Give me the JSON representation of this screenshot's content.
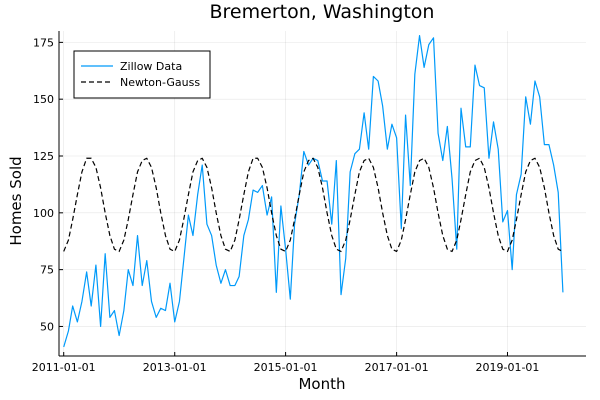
{
  "chart_data": {
    "type": "line",
    "title": "Bremerton, Washington",
    "xlabel": "Month",
    "ylabel": "Homes Sold",
    "x_axis": {
      "type": "date",
      "range": [
        "2010-12-01",
        "2020-06-01"
      ],
      "ticks": [
        "2011-01-01",
        "2013-01-01",
        "2015-01-01",
        "2017-01-01",
        "2019-01-01"
      ]
    },
    "y_axis": {
      "range": [
        37,
        180
      ],
      "ticks": [
        50,
        75,
        100,
        125,
        150,
        175
      ]
    },
    "grid": true,
    "legend": {
      "position": "top-left",
      "border": true
    },
    "series": [
      {
        "name": "Zillow Data",
        "color": "#009AFA",
        "style": "solid",
        "points": [
          [
            "2011-01-01",
            41
          ],
          [
            "2011-02-01",
            48
          ],
          [
            "2011-03-01",
            59
          ],
          [
            "2011-04-01",
            52
          ],
          [
            "2011-05-01",
            61
          ],
          [
            "2011-06-01",
            74
          ],
          [
            "2011-07-01",
            59
          ],
          [
            "2011-08-01",
            77
          ],
          [
            "2011-09-01",
            50
          ],
          [
            "2011-10-01",
            82
          ],
          [
            "2011-11-01",
            54
          ],
          [
            "2011-12-01",
            57
          ],
          [
            "2012-01-01",
            46
          ],
          [
            "2012-02-01",
            57
          ],
          [
            "2012-03-01",
            75
          ],
          [
            "2012-04-01",
            68
          ],
          [
            "2012-05-01",
            90
          ],
          [
            "2012-06-01",
            68
          ],
          [
            "2012-07-01",
            79
          ],
          [
            "2012-08-01",
            61
          ],
          [
            "2012-09-01",
            54
          ],
          [
            "2012-10-01",
            58
          ],
          [
            "2012-11-01",
            57
          ],
          [
            "2012-12-01",
            69
          ],
          [
            "2013-01-01",
            52
          ],
          [
            "2013-02-01",
            61
          ],
          [
            "2013-03-01",
            79
          ],
          [
            "2013-04-01",
            99
          ],
          [
            "2013-05-01",
            90
          ],
          [
            "2013-06-01",
            108
          ],
          [
            "2013-07-01",
            121
          ],
          [
            "2013-08-01",
            95
          ],
          [
            "2013-09-01",
            90
          ],
          [
            "2013-10-01",
            77
          ],
          [
            "2013-11-01",
            69
          ],
          [
            "2013-12-01",
            75
          ],
          [
            "2014-01-01",
            68
          ],
          [
            "2014-02-01",
            68
          ],
          [
            "2014-03-01",
            72
          ],
          [
            "2014-04-01",
            90
          ],
          [
            "2014-05-01",
            97
          ],
          [
            "2014-06-01",
            110
          ],
          [
            "2014-07-01",
            109
          ],
          [
            "2014-08-01",
            112
          ],
          [
            "2014-09-01",
            99
          ],
          [
            "2014-10-01",
            107
          ],
          [
            "2014-11-01",
            65
          ],
          [
            "2014-12-01",
            103
          ],
          [
            "2015-01-01",
            84
          ],
          [
            "2015-02-01",
            62
          ],
          [
            "2015-03-01",
            95
          ],
          [
            "2015-04-01",
            108
          ],
          [
            "2015-05-01",
            127
          ],
          [
            "2015-06-01",
            121
          ],
          [
            "2015-07-01",
            124
          ],
          [
            "2015-08-01",
            123
          ],
          [
            "2015-09-01",
            114
          ],
          [
            "2015-10-01",
            114
          ],
          [
            "2015-11-01",
            95
          ],
          [
            "2015-12-01",
            123
          ],
          [
            "2016-01-01",
            64
          ],
          [
            "2016-02-01",
            80
          ],
          [
            "2016-03-01",
            118
          ],
          [
            "2016-04-01",
            126
          ],
          [
            "2016-05-01",
            128
          ],
          [
            "2016-06-01",
            144
          ],
          [
            "2016-07-01",
            128
          ],
          [
            "2016-08-01",
            160
          ],
          [
            "2016-09-01",
            158
          ],
          [
            "2016-10-01",
            147
          ],
          [
            "2016-11-01",
            128
          ],
          [
            "2016-12-01",
            139
          ],
          [
            "2017-01-01",
            133
          ],
          [
            "2017-02-01",
            93
          ],
          [
            "2017-03-01",
            143
          ],
          [
            "2017-04-01",
            112
          ],
          [
            "2017-05-01",
            161
          ],
          [
            "2017-06-01",
            178
          ],
          [
            "2017-07-01",
            164
          ],
          [
            "2017-08-01",
            174
          ],
          [
            "2017-09-01",
            177
          ],
          [
            "2017-10-01",
            135
          ],
          [
            "2017-11-01",
            123
          ],
          [
            "2017-12-01",
            138
          ],
          [
            "2018-01-01",
            115
          ],
          [
            "2018-02-01",
            84
          ],
          [
            "2018-03-01",
            146
          ],
          [
            "2018-04-01",
            129
          ],
          [
            "2018-05-01",
            129
          ],
          [
            "2018-06-01",
            165
          ],
          [
            "2018-07-01",
            156
          ],
          [
            "2018-08-01",
            155
          ],
          [
            "2018-09-01",
            124
          ],
          [
            "2018-10-01",
            140
          ],
          [
            "2018-11-01",
            128
          ],
          [
            "2018-12-01",
            96
          ],
          [
            "2019-01-01",
            101
          ],
          [
            "2019-02-01",
            75
          ],
          [
            "2019-03-01",
            108
          ],
          [
            "2019-04-01",
            117
          ],
          [
            "2019-05-01",
            151
          ],
          [
            "2019-06-01",
            139
          ],
          [
            "2019-07-01",
            158
          ],
          [
            "2019-08-01",
            151
          ],
          [
            "2019-09-01",
            130
          ],
          [
            "2019-10-01",
            130
          ],
          [
            "2019-11-01",
            121
          ],
          [
            "2019-12-01",
            109
          ],
          [
            "2020-01-01",
            65
          ]
        ]
      },
      {
        "name": "Newton-Gauss",
        "color": "#000000",
        "style": "dashed",
        "points": [
          [
            "2011-01-01",
            83
          ],
          [
            "2011-02-01",
            88
          ],
          [
            "2011-03-01",
            97
          ],
          [
            "2011-04-01",
            108
          ],
          [
            "2011-05-01",
            118
          ],
          [
            "2011-06-01",
            124
          ],
          [
            "2011-07-01",
            124
          ],
          [
            "2011-08-01",
            120
          ],
          [
            "2011-09-01",
            111
          ],
          [
            "2011-10-01",
            100
          ],
          [
            "2011-11-01",
            90
          ],
          [
            "2011-12-01",
            84
          ],
          [
            "2012-01-01",
            83
          ],
          [
            "2012-02-01",
            88
          ],
          [
            "2012-03-01",
            97
          ],
          [
            "2012-04-01",
            108
          ],
          [
            "2012-05-01",
            118
          ],
          [
            "2012-06-01",
            123
          ],
          [
            "2012-07-01",
            124
          ],
          [
            "2012-08-01",
            120
          ],
          [
            "2012-09-01",
            111
          ],
          [
            "2012-10-01",
            100
          ],
          [
            "2012-11-01",
            90
          ],
          [
            "2012-12-01",
            84
          ],
          [
            "2013-01-01",
            83
          ],
          [
            "2013-02-01",
            88
          ],
          [
            "2013-03-01",
            97
          ],
          [
            "2013-04-01",
            108
          ],
          [
            "2013-05-01",
            118
          ],
          [
            "2013-06-01",
            123
          ],
          [
            "2013-07-01",
            124
          ],
          [
            "2013-08-01",
            120
          ],
          [
            "2013-09-01",
            111
          ],
          [
            "2013-10-01",
            100
          ],
          [
            "2013-11-01",
            90
          ],
          [
            "2013-12-01",
            84
          ],
          [
            "2014-01-01",
            83
          ],
          [
            "2014-02-01",
            88
          ],
          [
            "2014-03-01",
            97
          ],
          [
            "2014-04-01",
            108
          ],
          [
            "2014-05-01",
            118
          ],
          [
            "2014-06-01",
            124
          ],
          [
            "2014-07-01",
            124
          ],
          [
            "2014-08-01",
            120
          ],
          [
            "2014-09-01",
            111
          ],
          [
            "2014-10-01",
            100
          ],
          [
            "2014-11-01",
            90
          ],
          [
            "2014-12-01",
            84
          ],
          [
            "2015-01-01",
            83
          ],
          [
            "2015-02-01",
            88
          ],
          [
            "2015-03-01",
            97
          ],
          [
            "2015-04-01",
            108
          ],
          [
            "2015-05-01",
            118
          ],
          [
            "2015-06-01",
            123
          ],
          [
            "2015-07-01",
            124
          ],
          [
            "2015-08-01",
            120
          ],
          [
            "2015-09-01",
            111
          ],
          [
            "2015-10-01",
            100
          ],
          [
            "2015-11-01",
            90
          ],
          [
            "2015-12-01",
            84
          ],
          [
            "2016-01-01",
            83
          ],
          [
            "2016-02-01",
            88
          ],
          [
            "2016-03-01",
            97
          ],
          [
            "2016-04-01",
            108
          ],
          [
            "2016-05-01",
            118
          ],
          [
            "2016-06-01",
            123
          ],
          [
            "2016-07-01",
            124
          ],
          [
            "2016-08-01",
            120
          ],
          [
            "2016-09-01",
            111
          ],
          [
            "2016-10-01",
            100
          ],
          [
            "2016-11-01",
            90
          ],
          [
            "2016-12-01",
            84
          ],
          [
            "2017-01-01",
            83
          ],
          [
            "2017-02-01",
            88
          ],
          [
            "2017-03-01",
            97
          ],
          [
            "2017-04-01",
            108
          ],
          [
            "2017-05-01",
            118
          ],
          [
            "2017-06-01",
            123
          ],
          [
            "2017-07-01",
            124
          ],
          [
            "2017-08-01",
            120
          ],
          [
            "2017-09-01",
            111
          ],
          [
            "2017-10-01",
            100
          ],
          [
            "2017-11-01",
            90
          ],
          [
            "2017-12-01",
            84
          ],
          [
            "2018-01-01",
            83
          ],
          [
            "2018-02-01",
            88
          ],
          [
            "2018-03-01",
            97
          ],
          [
            "2018-04-01",
            108
          ],
          [
            "2018-05-01",
            118
          ],
          [
            "2018-06-01",
            123
          ],
          [
            "2018-07-01",
            124
          ],
          [
            "2018-08-01",
            120
          ],
          [
            "2018-09-01",
            111
          ],
          [
            "2018-10-01",
            100
          ],
          [
            "2018-11-01",
            90
          ],
          [
            "2018-12-01",
            84
          ],
          [
            "2019-01-01",
            83
          ],
          [
            "2019-02-01",
            88
          ],
          [
            "2019-03-01",
            97
          ],
          [
            "2019-04-01",
            108
          ],
          [
            "2019-05-01",
            118
          ],
          [
            "2019-06-01",
            123
          ],
          [
            "2019-07-01",
            124
          ],
          [
            "2019-08-01",
            120
          ],
          [
            "2019-09-01",
            111
          ],
          [
            "2019-10-01",
            100
          ],
          [
            "2019-11-01",
            90
          ],
          [
            "2019-12-01",
            84
          ],
          [
            "2020-01-01",
            83
          ]
        ]
      }
    ]
  }
}
